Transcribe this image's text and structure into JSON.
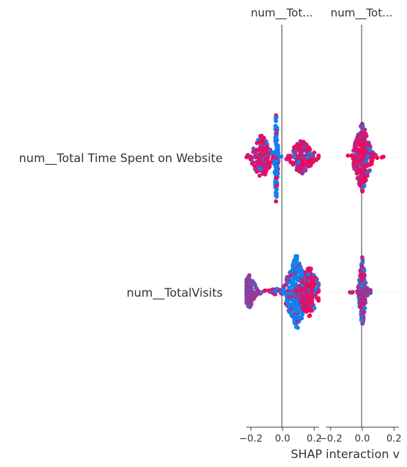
{
  "chart_data": {
    "type": "scatter",
    "subtype": "shap-interaction-beeswarm",
    "panel_titles": [
      "num__Tot...",
      "num__Tot..."
    ],
    "row_labels": [
      "num__Total Time Spent on Website",
      "num__TotalVisits"
    ],
    "xlabel": "SHAP interaction v",
    "xlim": [
      -0.23,
      0.23
    ],
    "xticks": [
      -0.2,
      0.0,
      0.2
    ],
    "xtick_labels": [
      "−0.2",
      "0.0",
      "0.2"
    ],
    "colors": {
      "low": "#008bfb",
      "high": "#ff0052",
      "mid": "#b42dc9",
      "zero_line": "#999999",
      "axis": "#333333"
    },
    "panels": [
      {
        "title": "num__Tot...",
        "rows": [
          {
            "feature": "num__Total Time Spent on Website",
            "clusters": [
              {
                "center": -0.13,
                "spread": 0.035,
                "half_width": 0.5,
                "n": 160,
                "color_mix": "high"
              },
              {
                "center": -0.04,
                "spread": 0.006,
                "half_width": 1.0,
                "n": 130,
                "color_mix": "low"
              },
              {
                "center": 0.12,
                "spread": 0.045,
                "half_width": 0.36,
                "n": 200,
                "color_mix": "high"
              }
            ]
          },
          {
            "feature": "num__TotalVisits",
            "clusters": [
              {
                "center": -0.21,
                "spread": 0.025,
                "half_width": 0.35,
                "n": 120,
                "color_mix": "mid"
              },
              {
                "center": -0.04,
                "spread": 0.06,
                "half_width": 0.06,
                "n": 30,
                "color_mix": "high"
              },
              {
                "center": 0.09,
                "spread": 0.04,
                "half_width": 0.8,
                "n": 260,
                "color_mix": "low"
              },
              {
                "center": 0.17,
                "spread": 0.035,
                "half_width": 0.55,
                "n": 180,
                "color_mix": "high"
              }
            ]
          }
        ]
      },
      {
        "title": "num__Tot...",
        "rows": [
          {
            "feature": "num__Total Time Spent on Website",
            "clusters": [
              {
                "center": 0.0,
                "spread": 0.03,
                "half_width": 0.75,
                "n": 260,
                "color_mix": "high"
              },
              {
                "center": 0.13,
                "spread": 0.005,
                "half_width": 0.02,
                "n": 2,
                "color_mix": "high"
              }
            ]
          },
          {
            "feature": "num__TotalVisits",
            "clusters": [
              {
                "center": 0.0,
                "spread": 0.012,
                "half_width": 0.75,
                "n": 160,
                "color_mix": "mixed"
              },
              {
                "center": 0.02,
                "spread": 0.02,
                "half_width": 0.1,
                "n": 40,
                "color_mix": "mid"
              },
              {
                "center": -0.07,
                "spread": 0.005,
                "half_width": 0.03,
                "n": 3,
                "color_mix": "high"
              }
            ]
          }
        ]
      }
    ]
  }
}
